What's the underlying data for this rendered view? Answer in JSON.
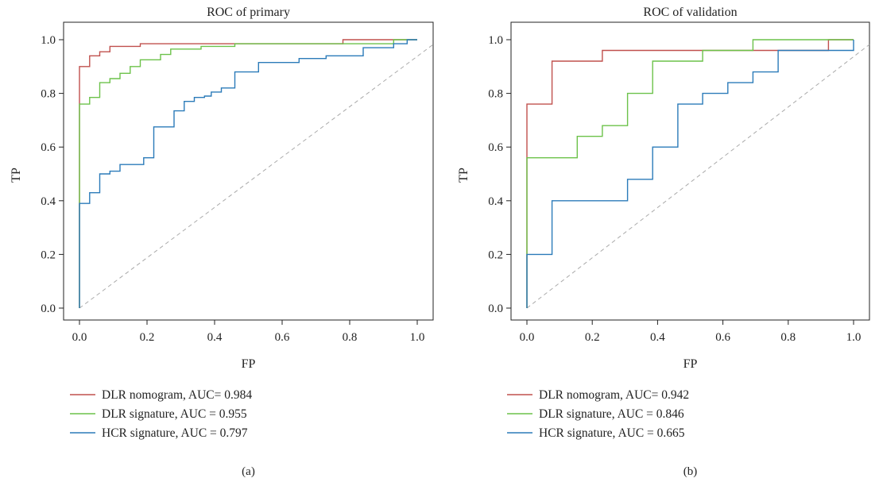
{
  "colors": {
    "red": "#c0504d",
    "green": "#6cc24a",
    "blue": "#2b7bb9",
    "diagonal": "#aaaaaa",
    "axis": "#222222"
  },
  "chart_data": [
    {
      "type": "line",
      "title": "ROC of primary",
      "xlabel": "FP",
      "ylabel": "TP",
      "xlim": [
        0,
        1
      ],
      "ylim": [
        0,
        1
      ],
      "xticks": [
        "0.0",
        "0.2",
        "0.4",
        "0.6",
        "0.8",
        "1.0"
      ],
      "yticks": [
        "0.0",
        "0.2",
        "0.4",
        "0.6",
        "0.8",
        "1.0"
      ],
      "grid": false,
      "legend_position": "bottom",
      "panel_label": "(a)",
      "series": [
        {
          "name": "DLR nomogram, AUC= 0.984",
          "color": "red",
          "x": [
            0,
            0,
            0.03,
            0.03,
            0.06,
            0.06,
            0.09,
            0.09,
            0.18,
            0.18,
            0.78,
            0.78,
            0.86,
            0.86,
            1
          ],
          "y": [
            0,
            0.9,
            0.9,
            0.94,
            0.94,
            0.955,
            0.955,
            0.975,
            0.975,
            0.985,
            0.985,
            1,
            1,
            1,
            1
          ]
        },
        {
          "name": "DLR signature, AUC = 0.955",
          "color": "green",
          "x": [
            0,
            0,
            0.03,
            0.03,
            0.06,
            0.06,
            0.09,
            0.09,
            0.12,
            0.12,
            0.15,
            0.15,
            0.18,
            0.18,
            0.24,
            0.24,
            0.27,
            0.27,
            0.36,
            0.36,
            0.46,
            0.46,
            0.93,
            0.93,
            1
          ],
          "y": [
            0,
            0.76,
            0.76,
            0.785,
            0.785,
            0.84,
            0.84,
            0.855,
            0.855,
            0.875,
            0.875,
            0.9,
            0.9,
            0.925,
            0.925,
            0.945,
            0.945,
            0.965,
            0.965,
            0.975,
            0.975,
            0.985,
            0.985,
            1,
            1
          ]
        },
        {
          "name": "HCR signature, AUC = 0.797",
          "color": "blue",
          "x": [
            0,
            0,
            0.03,
            0.03,
            0.06,
            0.06,
            0.09,
            0.09,
            0.12,
            0.12,
            0.19,
            0.19,
            0.22,
            0.22,
            0.28,
            0.28,
            0.31,
            0.31,
            0.34,
            0.34,
            0.37,
            0.37,
            0.39,
            0.39,
            0.42,
            0.42,
            0.46,
            0.46,
            0.53,
            0.53,
            0.65,
            0.65,
            0.73,
            0.73,
            0.84,
            0.84,
            0.93,
            0.93,
            0.97,
            0.97,
            1
          ],
          "y": [
            0,
            0.39,
            0.39,
            0.43,
            0.43,
            0.5,
            0.5,
            0.51,
            0.51,
            0.535,
            0.535,
            0.56,
            0.56,
            0.675,
            0.675,
            0.735,
            0.735,
            0.77,
            0.77,
            0.785,
            0.785,
            0.79,
            0.79,
            0.805,
            0.805,
            0.82,
            0.82,
            0.88,
            0.88,
            0.915,
            0.915,
            0.93,
            0.93,
            0.94,
            0.94,
            0.97,
            0.97,
            0.985,
            0.985,
            1,
            1
          ]
        }
      ]
    },
    {
      "type": "line",
      "title": "ROC of validation",
      "xlabel": "FP",
      "ylabel": "TP",
      "xlim": [
        0,
        1
      ],
      "ylim": [
        0,
        1
      ],
      "xticks": [
        "0.0",
        "0.2",
        "0.4",
        "0.6",
        "0.8",
        "1.0"
      ],
      "yticks": [
        "0.0",
        "0.2",
        "0.4",
        "0.6",
        "0.8",
        "1.0"
      ],
      "grid": false,
      "legend_position": "bottom",
      "panel_label": "(b)",
      "series": [
        {
          "name": "DLR nomogram, AUC= 0.942",
          "color": "red",
          "x": [
            0,
            0,
            0.077,
            0.077,
            0.231,
            0.231,
            0.923,
            0.923,
            1
          ],
          "y": [
            0,
            0.76,
            0.76,
            0.92,
            0.92,
            0.96,
            0.96,
            1,
            1
          ]
        },
        {
          "name": "DLR signature, AUC = 0.846",
          "color": "green",
          "x": [
            0,
            0,
            0.154,
            0.154,
            0.231,
            0.231,
            0.308,
            0.308,
            0.385,
            0.385,
            0.538,
            0.538,
            0.692,
            0.692,
            1
          ],
          "y": [
            0,
            0.56,
            0.56,
            0.64,
            0.64,
            0.68,
            0.68,
            0.8,
            0.8,
            0.92,
            0.92,
            0.96,
            0.96,
            1,
            1
          ]
        },
        {
          "name": "HCR signature, AUC = 0.665",
          "color": "blue",
          "x": [
            0,
            0,
            0.077,
            0.077,
            0.308,
            0.308,
            0.385,
            0.385,
            0.462,
            0.462,
            0.538,
            0.538,
            0.615,
            0.615,
            0.692,
            0.692,
            0.769,
            0.769,
            1,
            1
          ],
          "y": [
            0,
            0.2,
            0.2,
            0.4,
            0.4,
            0.48,
            0.48,
            0.6,
            0.6,
            0.76,
            0.76,
            0.8,
            0.8,
            0.84,
            0.84,
            0.88,
            0.88,
            0.96,
            0.96,
            1
          ]
        }
      ]
    }
  ]
}
